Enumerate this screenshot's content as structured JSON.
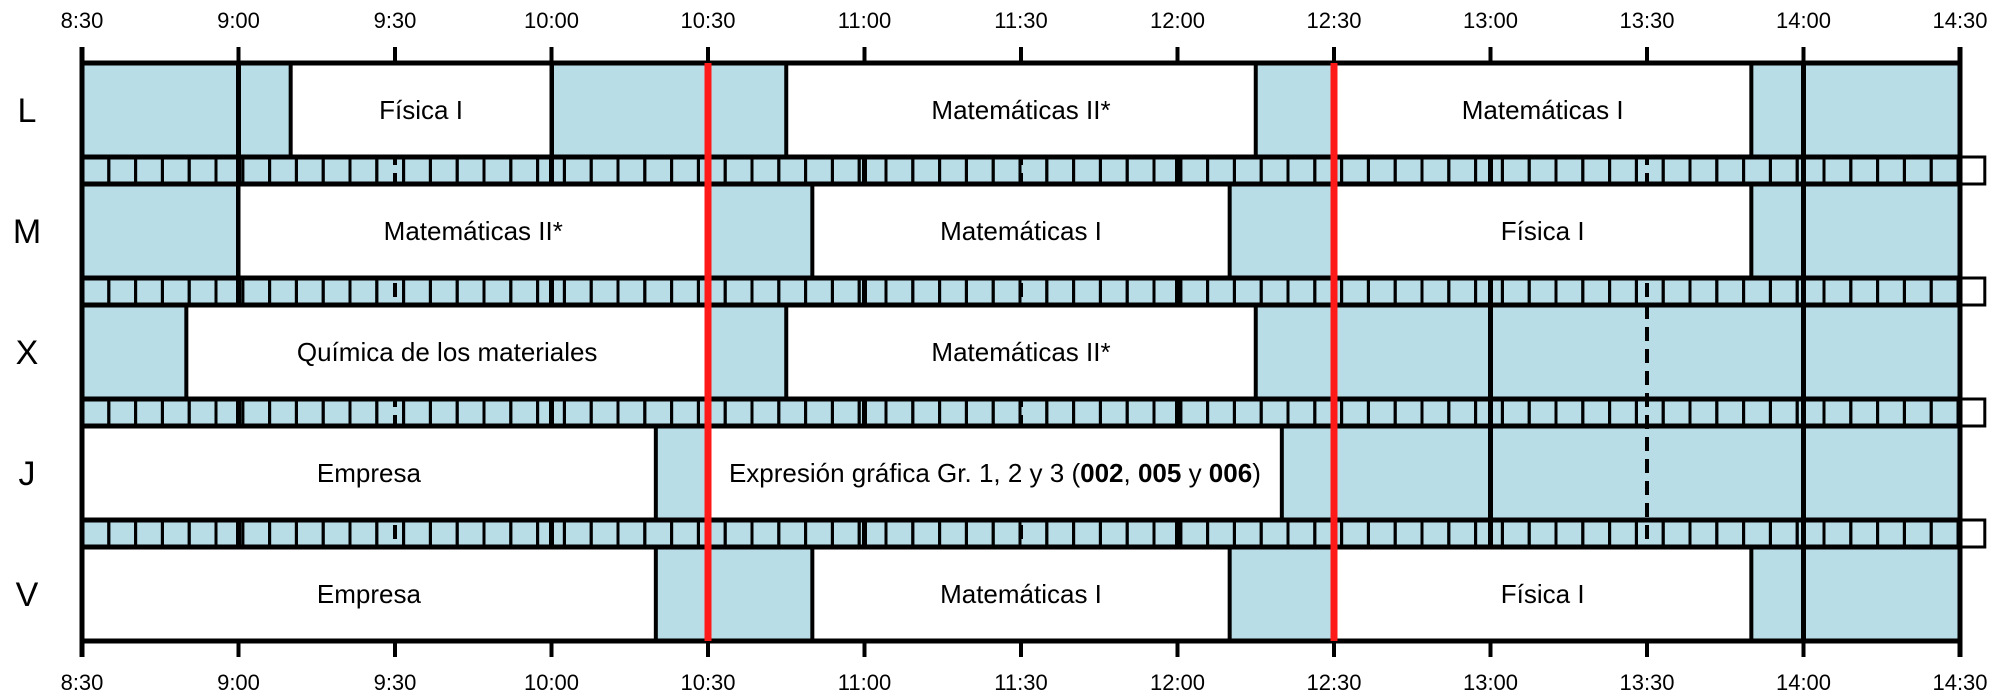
{
  "schedule": {
    "start_time": "8:30",
    "end_time": "14:30",
    "time_labels": [
      "8:30",
      "9:00",
      "9:30",
      "10:00",
      "10:30",
      "11:00",
      "11:30",
      "12:00",
      "12:30",
      "13:00",
      "13:30",
      "14:00",
      "14:30"
    ],
    "half_hour_marks": [
      "9:30",
      "11:30",
      "13:30"
    ],
    "break_times": [
      "10:30",
      "12:30"
    ],
    "colors": {
      "free_fill": "#b8dde7",
      "class_fill": "#ffffff",
      "line": "#000000",
      "break_line": "#ff1a1a"
    },
    "days": [
      {
        "label": "L",
        "classes": [
          {
            "name": "Física I",
            "start": "9:10",
            "end": "10:00"
          },
          {
            "name": "Matemáticas II*",
            "start": "10:45",
            "end": "12:15"
          },
          {
            "name": "Matemáticas I",
            "start": "12:30",
            "end": "13:50"
          }
        ]
      },
      {
        "label": "M",
        "classes": [
          {
            "name": "Matemáticas II*",
            "start": "9:00",
            "end": "10:30"
          },
          {
            "name": "Matemáticas I",
            "start": "10:50",
            "end": "12:10"
          },
          {
            "name": "Física I",
            "start": "12:30",
            "end": "13:50"
          }
        ]
      },
      {
        "label": "X",
        "classes": [
          {
            "name": "Química de los materiales",
            "start": "8:50",
            "end": "10:30"
          },
          {
            "name": "Matemáticas II*",
            "start": "10:45",
            "end": "12:15"
          }
        ]
      },
      {
        "label": "J",
        "classes": [
          {
            "name": "Empresa",
            "start": "8:30",
            "end": "10:20"
          },
          {
            "name": "Expresión gráfica Gr. 1, 2 y 3 (002, 005 y 006)",
            "start": "10:30",
            "end": "12:20",
            "rich": [
              [
                "Expresión gráfica Gr. 1, 2 y 3 (",
                false
              ],
              [
                "002",
                true
              ],
              [
                ", ",
                false
              ],
              [
                "005",
                true
              ],
              [
                " y ",
                false
              ],
              [
                "006",
                true
              ],
              [
                ")",
                false
              ]
            ]
          }
        ]
      },
      {
        "label": "V",
        "classes": [
          {
            "name": "Empresa",
            "start": "8:30",
            "end": "10:20"
          },
          {
            "name": "Matemáticas I",
            "start": "10:50",
            "end": "12:10"
          },
          {
            "name": "Física I",
            "start": "12:30",
            "end": "13:50"
          }
        ]
      }
    ]
  }
}
